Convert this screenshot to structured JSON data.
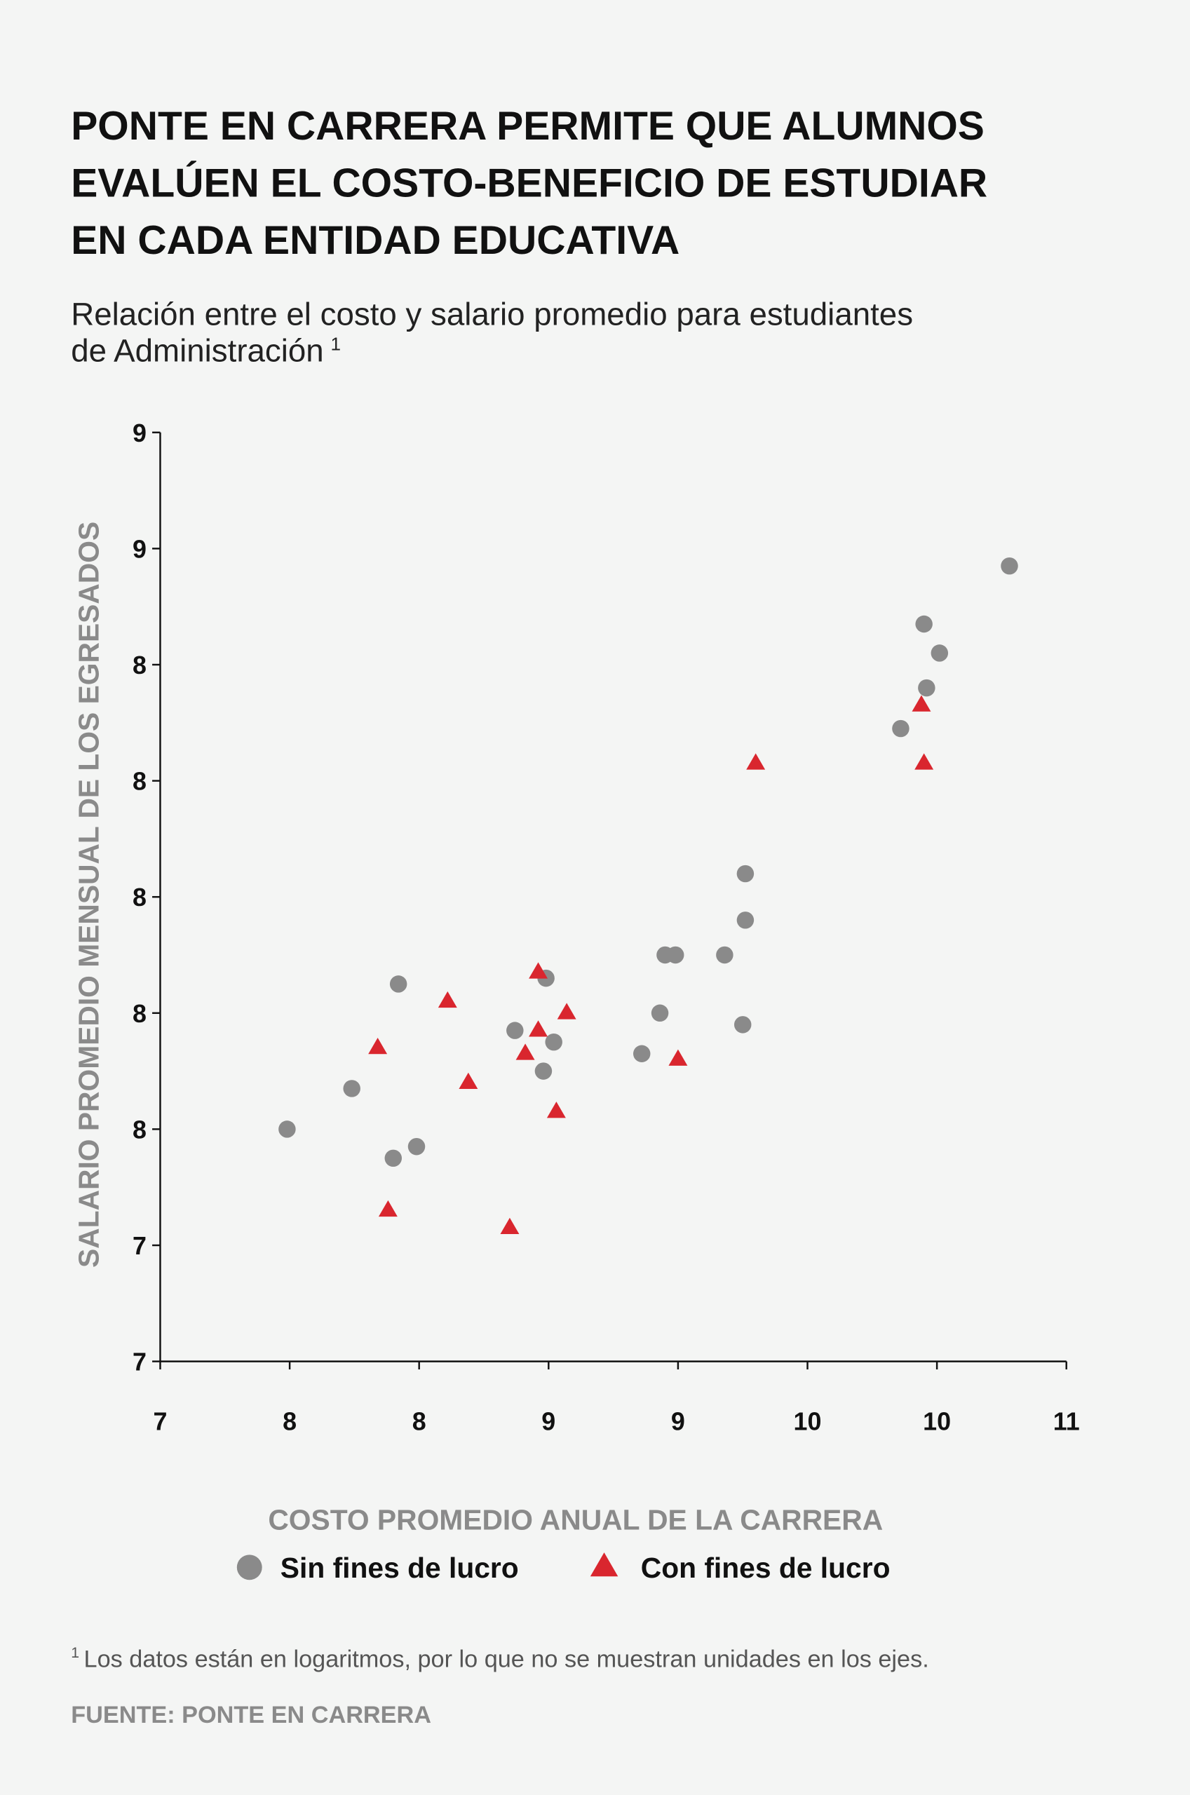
{
  "chart_data": {
    "type": "scatter",
    "title": [
      "PONTE EN CARRERA PERMITE QUE ALUMNOS",
      "EVALÚEN EL COSTO-BENEFICIO DE ESTUDIAR",
      "EN CADA ENTIDAD EDUCATIVA"
    ],
    "subtitle": [
      "Relación entre el costo y salario promedio para estudiantes",
      "de Administración"
    ],
    "subtitle_footnote_mark": "1",
    "x_label": "COSTO PROMEDIO ANUAL DE LA CARRERA",
    "y_label": "SALARIO PROMEDIO MENSUAL DE LOS EGRESADOS",
    "xlim": [
      7,
      10.5
    ],
    "xticks": [
      7,
      {
        "value": 7.5,
        "label": "8"
      },
      8,
      {
        "value": 8.5,
        "label": "9"
      },
      9,
      {
        "value": 9.5,
        "label": "10"
      },
      10,
      {
        "value": 10.5,
        "label": "11"
      }
    ],
    "ylim": [
      7.1,
      8.7
    ],
    "yticks": [
      {
        "value": 7.1,
        "label": "7"
      },
      {
        "value": 7.3,
        "label": "7"
      },
      {
        "value": 7.5,
        "label": "8"
      },
      {
        "value": 7.7,
        "label": "8"
      },
      {
        "value": 7.9,
        "label": "8"
      },
      {
        "value": 8.1,
        "label": "8"
      },
      {
        "value": 8.3,
        "label": "8"
      },
      {
        "value": 8.5,
        "label": "9"
      },
      {
        "value": 8.7,
        "label": "9"
      }
    ],
    "grid": false,
    "series": [
      {
        "name": "Sin fines de lucro",
        "color": "#8a8a8a",
        "marker": "circle",
        "x": [
          7.49,
          7.74,
          7.9,
          7.92,
          7.99,
          8.37,
          8.48,
          8.49,
          8.52,
          8.86,
          8.93,
          8.95,
          8.99,
          9.18,
          9.25,
          9.26,
          9.26,
          9.86,
          9.95,
          9.96,
          10.01,
          10.28
        ],
        "values": [
          7.5,
          7.57,
          7.45,
          7.75,
          7.47,
          7.67,
          7.6,
          7.76,
          7.65,
          7.63,
          7.7,
          7.8,
          7.8,
          7.8,
          7.68,
          7.86,
          7.94,
          8.19,
          8.37,
          8.26,
          8.32,
          8.47
        ]
      },
      {
        "name": "Con fines de lucro",
        "color": "#d9262e",
        "marker": "triangle",
        "x": [
          7.88,
          7.84,
          8.11,
          8.19,
          8.35,
          8.41,
          8.46,
          8.46,
          8.53,
          8.57,
          9.0,
          9.3,
          9.94,
          9.95
        ],
        "values": [
          7.36,
          7.64,
          7.72,
          7.58,
          7.33,
          7.63,
          7.67,
          7.77,
          7.53,
          7.7,
          7.62,
          8.13,
          8.23,
          8.13
        ]
      }
    ],
    "footnote_mark": "1",
    "footnote": "Los datos están en logaritmos, por lo que no se muestran unidades en los ejes.",
    "source": "FUENTE: PONTE EN CARRERA"
  }
}
